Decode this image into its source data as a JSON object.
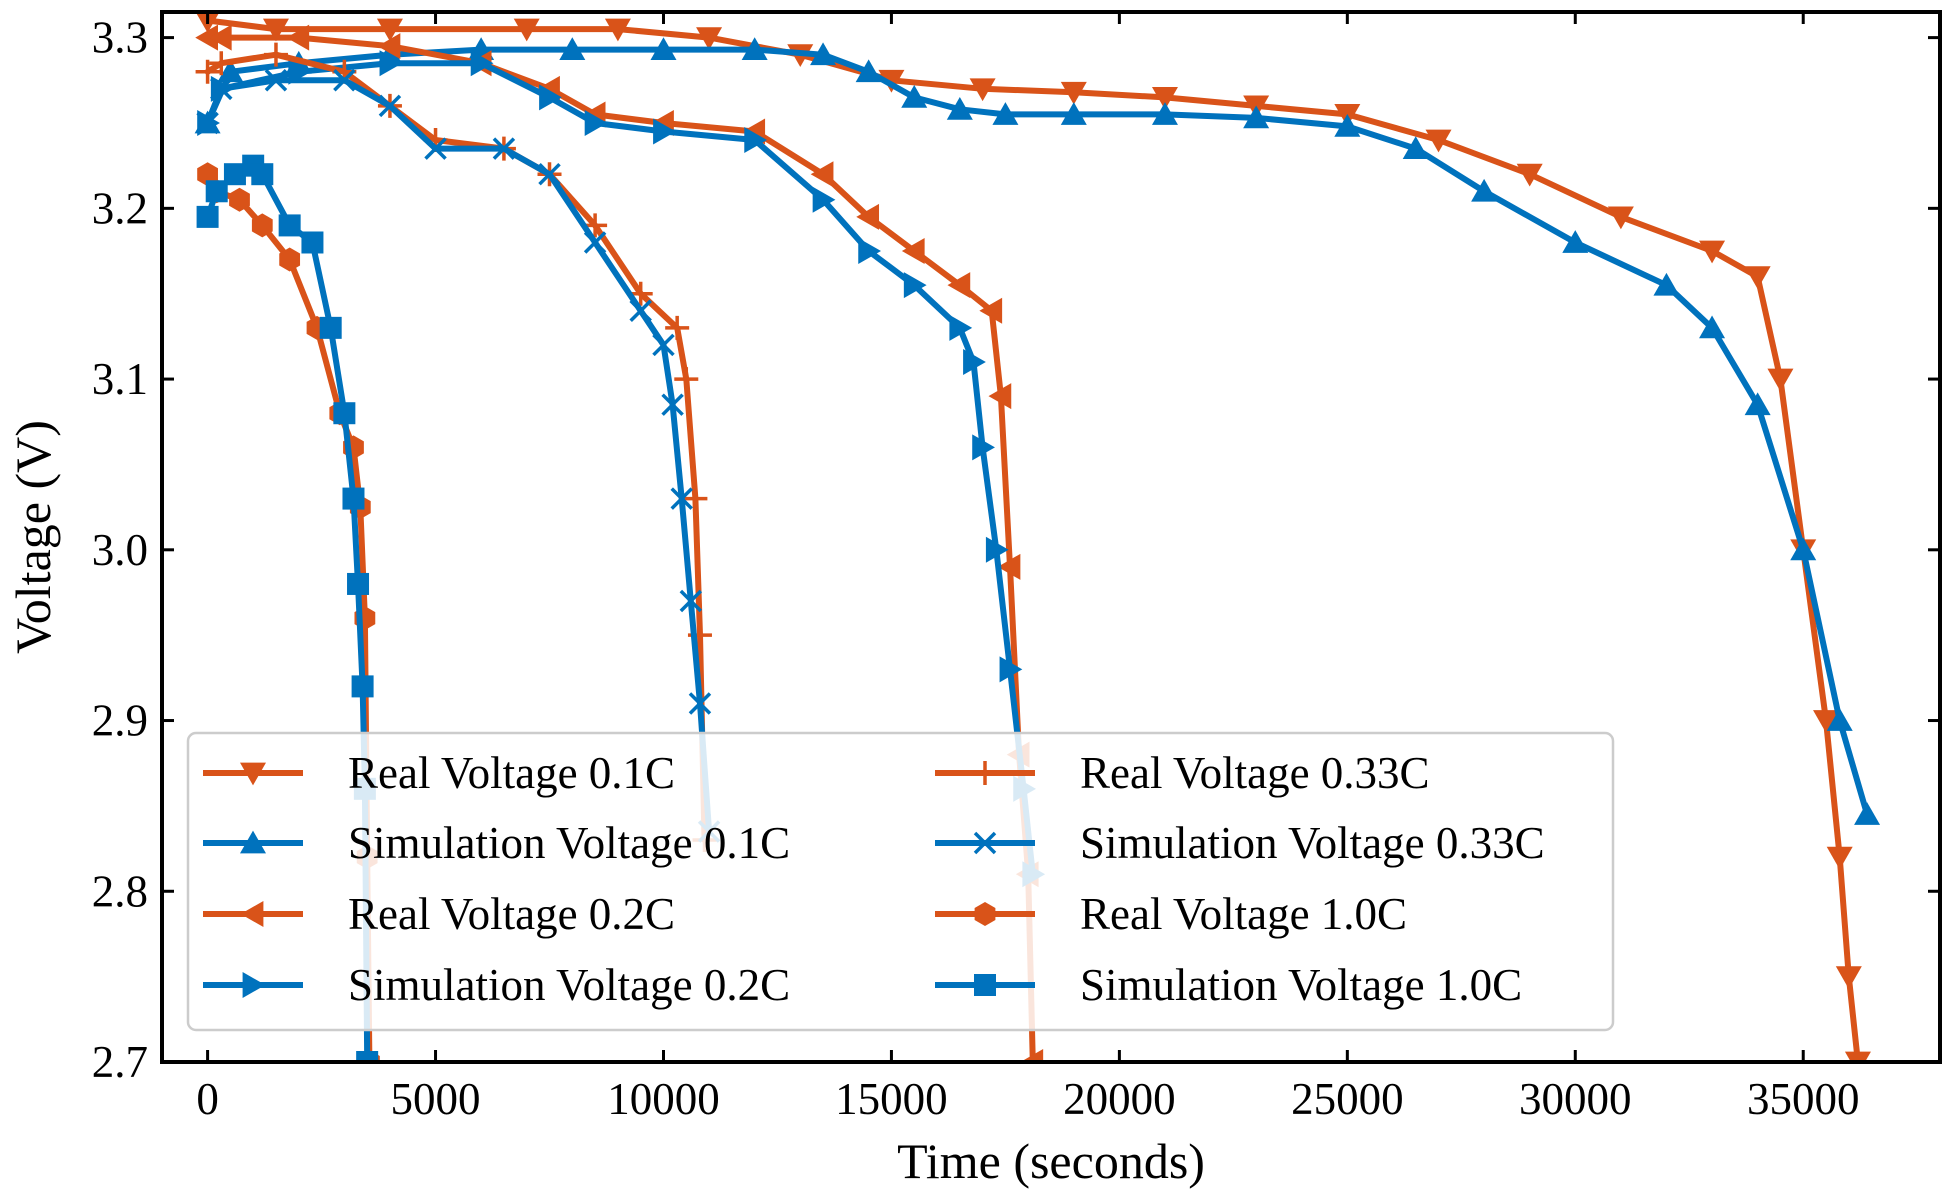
{
  "chart_data": {
    "type": "line",
    "title": "",
    "xlabel": "Time (seconds)",
    "ylabel": "Voltage (V)",
    "xlim": [
      -1000,
      38000
    ],
    "ylim": [
      2.7,
      3.315
    ],
    "x_ticks": [
      0,
      5000,
      10000,
      15000,
      20000,
      25000,
      30000,
      35000
    ],
    "x_tick_labels": [
      "0",
      "5000",
      "10000",
      "15000",
      "20000",
      "25000",
      "30000",
      "35000"
    ],
    "y_ticks": [
      2.7,
      2.8,
      2.9,
      3.0,
      3.1,
      3.2,
      3.3
    ],
    "y_tick_labels": [
      "2.7",
      "2.8",
      "2.9",
      "3.0",
      "3.1",
      "3.2",
      "3.3"
    ],
    "grid": false,
    "legend_position": "lower-left",
    "colors": {
      "real": "#D95319",
      "simulation": "#0072BD"
    },
    "series": [
      {
        "name": "Real Voltage 0.1C",
        "marker": "triangle-down",
        "color": "#D95319",
        "x": [
          0,
          1500,
          4000,
          7000,
          9000,
          11000,
          13000,
          15000,
          17000,
          19000,
          21000,
          23000,
          25000,
          27000,
          29000,
          31000,
          33000,
          34000,
          34500,
          35000,
          35500,
          35800,
          36000,
          36200,
          36300
        ],
        "y": [
          3.31,
          3.305,
          3.305,
          3.305,
          3.305,
          3.3,
          3.29,
          3.275,
          3.27,
          3.268,
          3.265,
          3.26,
          3.255,
          3.24,
          3.22,
          3.195,
          3.175,
          3.16,
          3.1,
          3.0,
          2.9,
          2.82,
          2.75,
          2.7,
          2.66
        ]
      },
      {
        "name": "Simulation Voltage 0.1C",
        "marker": "triangle-up",
        "color": "#0072BD",
        "x": [
          0,
          500,
          2000,
          4000,
          6000,
          8000,
          10000,
          12000,
          13500,
          14500,
          15500,
          16500,
          17500,
          19000,
          21000,
          23000,
          25000,
          26500,
          28000,
          30000,
          32000,
          33000,
          34000,
          35000,
          35800,
          36400
        ],
        "y": [
          3.25,
          3.28,
          3.285,
          3.29,
          3.293,
          3.293,
          3.293,
          3.293,
          3.29,
          3.28,
          3.265,
          3.258,
          3.255,
          3.255,
          3.255,
          3.253,
          3.248,
          3.235,
          3.21,
          3.18,
          3.155,
          3.13,
          3.085,
          3.0,
          2.9,
          2.845
        ]
      },
      {
        "name": "Real Voltage 0.2C",
        "marker": "triangle-left",
        "color": "#D95319",
        "x": [
          0,
          300,
          2000,
          4000,
          6000,
          7500,
          8500,
          10000,
          12000,
          13500,
          14500,
          15500,
          16500,
          17200,
          17400,
          17600,
          17800,
          18000,
          18100
        ],
        "y": [
          3.3,
          3.3,
          3.3,
          3.295,
          3.285,
          3.27,
          3.255,
          3.25,
          3.245,
          3.22,
          3.195,
          3.175,
          3.155,
          3.14,
          3.09,
          2.99,
          2.88,
          2.81,
          2.7
        ]
      },
      {
        "name": "Simulation Voltage 0.2C",
        "marker": "triangle-right",
        "color": "#0072BD",
        "x": [
          0,
          300,
          2000,
          4000,
          6000,
          7500,
          8500,
          10000,
          12000,
          13500,
          14500,
          15500,
          16500,
          16800,
          17000,
          17300,
          17600,
          17900,
          18100
        ],
        "y": [
          3.25,
          3.27,
          3.28,
          3.285,
          3.285,
          3.265,
          3.25,
          3.245,
          3.24,
          3.205,
          3.175,
          3.155,
          3.13,
          3.11,
          3.06,
          3.0,
          2.93,
          2.86,
          2.81
        ]
      },
      {
        "name": "Real Voltage 0.33C",
        "marker": "plus",
        "color": "#D95319",
        "x": [
          0,
          300,
          1500,
          3000,
          4000,
          5000,
          6500,
          7500,
          8500,
          9500,
          10300,
          10500,
          10700,
          10800,
          10900
        ],
        "y": [
          3.28,
          3.285,
          3.29,
          3.28,
          3.26,
          3.24,
          3.235,
          3.22,
          3.19,
          3.15,
          3.13,
          3.1,
          3.03,
          2.95,
          2.83
        ]
      },
      {
        "name": "Simulation Voltage 0.33C",
        "marker": "x",
        "color": "#0072BD",
        "x": [
          0,
          300,
          1500,
          3000,
          4000,
          5000,
          6500,
          7500,
          8500,
          9500,
          10000,
          10200,
          10400,
          10600,
          10800,
          11000
        ],
        "y": [
          3.25,
          3.27,
          3.275,
          3.275,
          3.26,
          3.235,
          3.235,
          3.22,
          3.18,
          3.14,
          3.12,
          3.085,
          3.03,
          2.97,
          2.91,
          2.835
        ]
      },
      {
        "name": "Real Voltage 1.0C",
        "marker": "hexagon",
        "color": "#D95319",
        "x": [
          0,
          200,
          700,
          1200,
          1800,
          2400,
          2900,
          3200,
          3350,
          3450,
          3500,
          3550
        ],
        "y": [
          3.22,
          3.21,
          3.205,
          3.19,
          3.17,
          3.13,
          3.08,
          3.06,
          3.025,
          2.96,
          2.82,
          2.7
        ]
      },
      {
        "name": "Simulation Voltage 1.0C",
        "marker": "square",
        "color": "#0072BD",
        "x": [
          0,
          200,
          600,
          1000,
          1200,
          1800,
          2300,
          2700,
          3000,
          3200,
          3300,
          3400,
          3450,
          3500
        ],
        "y": [
          3.195,
          3.21,
          3.22,
          3.225,
          3.22,
          3.19,
          3.18,
          3.13,
          3.08,
          3.03,
          2.98,
          2.92,
          2.86,
          2.7
        ]
      }
    ]
  }
}
